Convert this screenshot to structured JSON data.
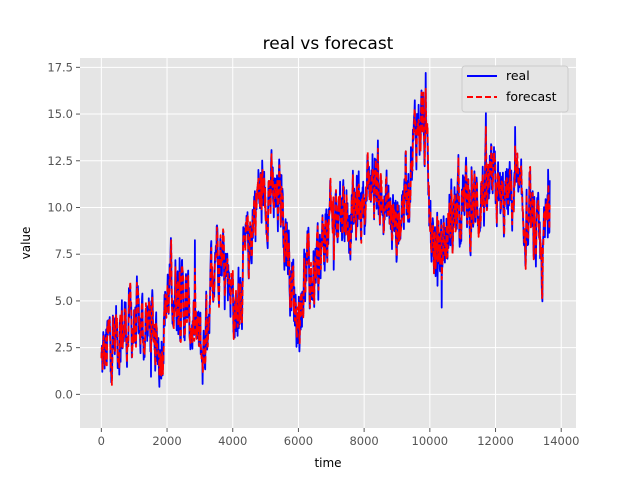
{
  "chart_data": {
    "type": "line",
    "title": "real vs forecast",
    "xlabel": "time",
    "ylabel": "value",
    "xlim": [
      -650,
      14450
    ],
    "ylim": [
      -1.8,
      18.0
    ],
    "xticks": [
      0,
      2000,
      4000,
      6000,
      8000,
      10000,
      12000,
      14000
    ],
    "xtick_labels": [
      "0",
      "2000",
      "4000",
      "6000",
      "8000",
      "10000",
      "12000",
      "14000"
    ],
    "yticks": [
      0.0,
      2.5,
      5.0,
      7.5,
      10.0,
      12.5,
      15.0,
      17.5
    ],
    "ytick_labels": [
      "0.0",
      "2.5",
      "5.0",
      "7.5",
      "10.0",
      "12.5",
      "15.0",
      "17.5"
    ],
    "grid": true,
    "legend_position": "top-right",
    "colors": {
      "real": "#0000ff",
      "forecast": "#ff0000",
      "plot_bg": "#e5e5e5",
      "grid": "#ffffff"
    },
    "series": [
      {
        "name": "real",
        "style": "solid"
      },
      {
        "name": "forecast",
        "style": "dashed"
      }
    ],
    "trend": {
      "x": [
        0,
        300,
        600,
        900,
        1200,
        1500,
        1800,
        2000,
        2300,
        2600,
        2900,
        3100,
        3300,
        3500,
        3700,
        3900,
        4100,
        4300,
        4500,
        4700,
        4900,
        5100,
        5300,
        5500,
        5800,
        6000,
        6200,
        6400,
        6600,
        6800,
        7000,
        7200,
        7400,
        7600,
        7800,
        8000,
        8200,
        8400,
        8600,
        8800,
        9000,
        9200,
        9400,
        9600,
        9800,
        10000,
        10200,
        10400,
        10600,
        10800,
        11000,
        11200,
        11400,
        11600,
        11800,
        12000,
        12200,
        12400,
        12600,
        12800,
        13000,
        13200,
        13400,
        13650
      ],
      "y": [
        1.5,
        3.0,
        3.5,
        3.8,
        3.5,
        3.8,
        2.5,
        5.5,
        5.8,
        4.5,
        3.0,
        2.0,
        5.5,
        8.5,
        7.5,
        6.5,
        4.0,
        6.5,
        8.0,
        10.5,
        10.5,
        11.0,
        10.0,
        10.5,
        6.0,
        4.0,
        6.5,
        6.0,
        6.5,
        8.5,
        9.0,
        10.5,
        10.0,
        9.5,
        10.0,
        10.5,
        11.5,
        11.5,
        10.0,
        9.5,
        9.0,
        10.5,
        12.0,
        14.5,
        15.0,
        9.0,
        7.5,
        8.0,
        9.0,
        10.0,
        10.5,
        10.0,
        10.0,
        11.0,
        10.5,
        11.0,
        10.0,
        10.5,
        11.0,
        9.5,
        9.0,
        8.5,
        7.0,
        10.5
      ]
    }
  }
}
